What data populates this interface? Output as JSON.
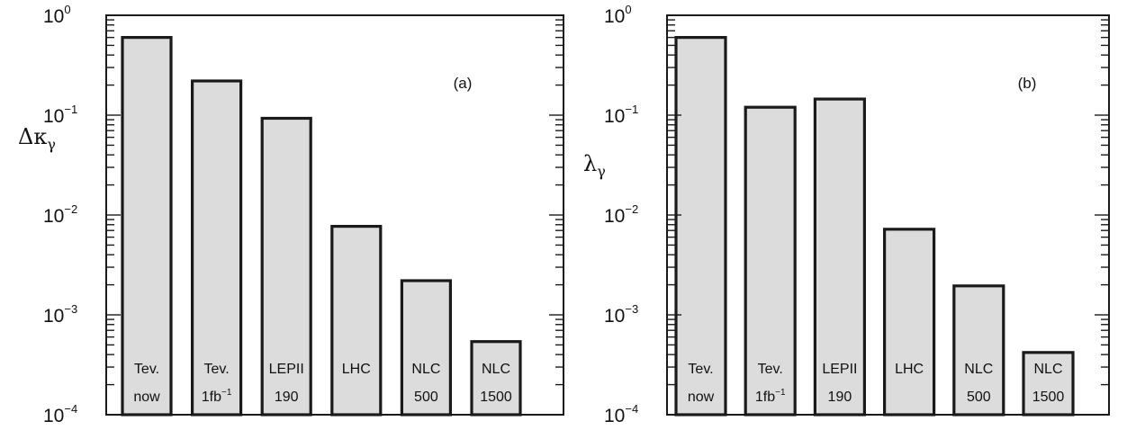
{
  "chart_data": [
    {
      "type": "bar",
      "panel_label": "(a)",
      "ylabel": "Δκ",
      "ylabel_sub": "γ",
      "yscale": "log",
      "ylim": [
        0.0001,
        1
      ],
      "yticks": [
        {
          "base": "10",
          "exp": "0"
        },
        {
          "base": "10",
          "exp": "−1"
        },
        {
          "base": "10",
          "exp": "−2"
        },
        {
          "base": "10",
          "exp": "−3"
        },
        {
          "base": "10",
          "exp": "−4"
        }
      ],
      "categories": [
        {
          "line1": "Tev.",
          "line2": "now"
        },
        {
          "line1": "Tev.",
          "line2": "1fb",
          "line2_sup": "−1"
        },
        {
          "line1": "LEPII",
          "line2": "190"
        },
        {
          "line1": "LHC",
          "line2": ""
        },
        {
          "line1": "NLC",
          "line2": "500"
        },
        {
          "line1": "NLC",
          "line2": "1500"
        }
      ],
      "values": [
        0.6,
        0.22,
        0.093,
        0.0077,
        0.0022,
        0.00054
      ]
    },
    {
      "type": "bar",
      "panel_label": "(b)",
      "ylabel": "λ",
      "ylabel_sub": "γ",
      "yscale": "log",
      "ylim": [
        0.0001,
        1
      ],
      "yticks": [
        {
          "base": "10",
          "exp": "0"
        },
        {
          "base": "10",
          "exp": "−1"
        },
        {
          "base": "10",
          "exp": "−2"
        },
        {
          "base": "10",
          "exp": "−3"
        },
        {
          "base": "10",
          "exp": "−4"
        }
      ],
      "categories": [
        {
          "line1": "Tev.",
          "line2": "now"
        },
        {
          "line1": "Tev.",
          "line2": "1fb",
          "line2_sup": "−1"
        },
        {
          "line1": "LEPII",
          "line2": "190"
        },
        {
          "line1": "LHC",
          "line2": ""
        },
        {
          "line1": "NLC",
          "line2": "500"
        },
        {
          "line1": "NLC",
          "line2": "1500"
        }
      ],
      "values": [
        0.6,
        0.12,
        0.145,
        0.0072,
        0.00195,
        0.00042
      ]
    }
  ]
}
